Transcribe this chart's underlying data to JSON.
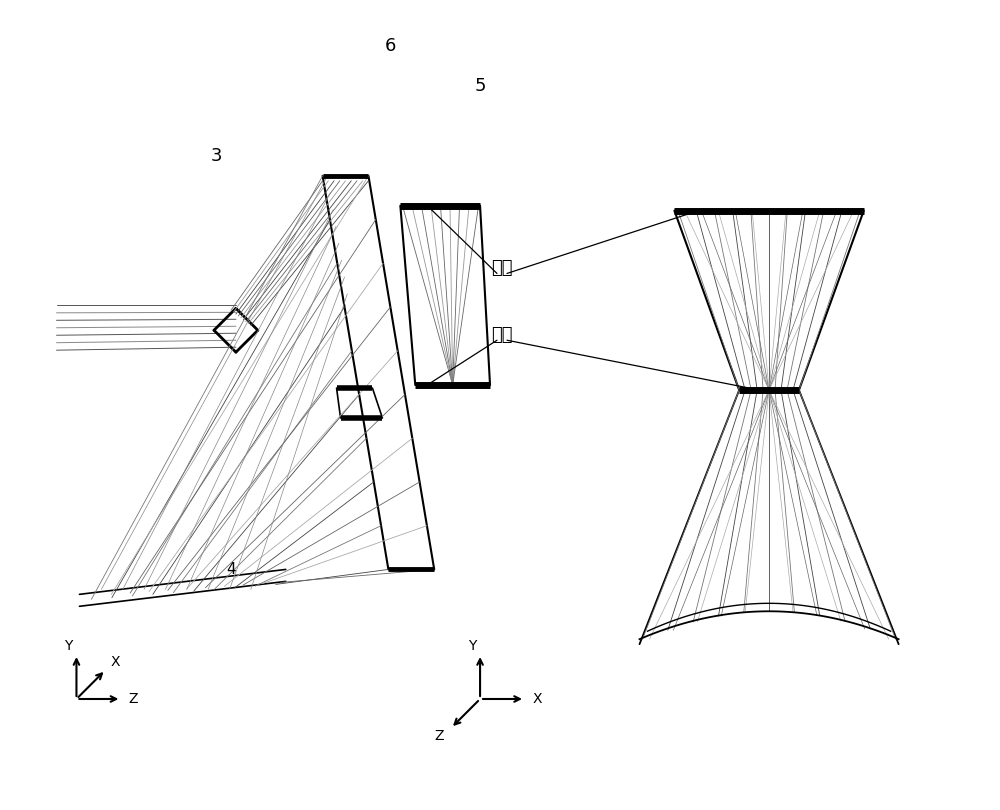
{
  "background_color": "#ffffff",
  "label_6": "6",
  "label_5": "5",
  "label_3": "3",
  "label_4": "4",
  "label_cold_shield": "冷屏",
  "label_exit_pupil": "出瞳",
  "fig_width": 10.0,
  "fig_height": 8.1,
  "dpi": 100
}
